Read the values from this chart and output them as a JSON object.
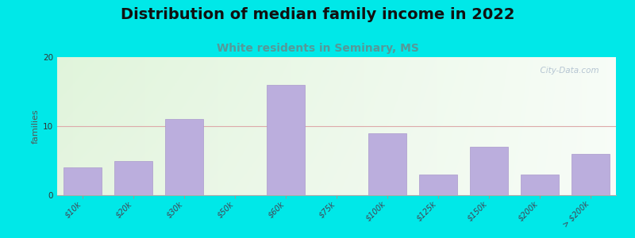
{
  "title": "Distribution of median family income in 2022",
  "subtitle": "White residents in Seminary, MS",
  "ylabel": "families",
  "categories": [
    "$10k",
    "$20k",
    "$30k",
    "$50k",
    "$60k",
    "$75k",
    "$100k",
    "$125k",
    "$150k",
    "$200k",
    "> $200k"
  ],
  "values": [
    4,
    5,
    11,
    0,
    16,
    0,
    9,
    3,
    7,
    3,
    6
  ],
  "bar_color": "#bbaedd",
  "bar_edge_color": "#aa99cc",
  "bg_outer": "#00e8e8",
  "bg_plot_top_left": "#d8f0d0",
  "bg_plot_top_right": "#f5faf5",
  "bg_plot_bottom": "#f0f8f0",
  "title_fontsize": 14,
  "subtitle_fontsize": 10,
  "subtitle_color": "#559999",
  "ylabel_fontsize": 8,
  "tick_fontsize": 7,
  "ylim": [
    0,
    20
  ],
  "yticks": [
    0,
    10,
    20
  ],
  "grid_color": "#ddaaaa",
  "watermark": "  City-Data.com",
  "watermark_color": "#aabbcc"
}
